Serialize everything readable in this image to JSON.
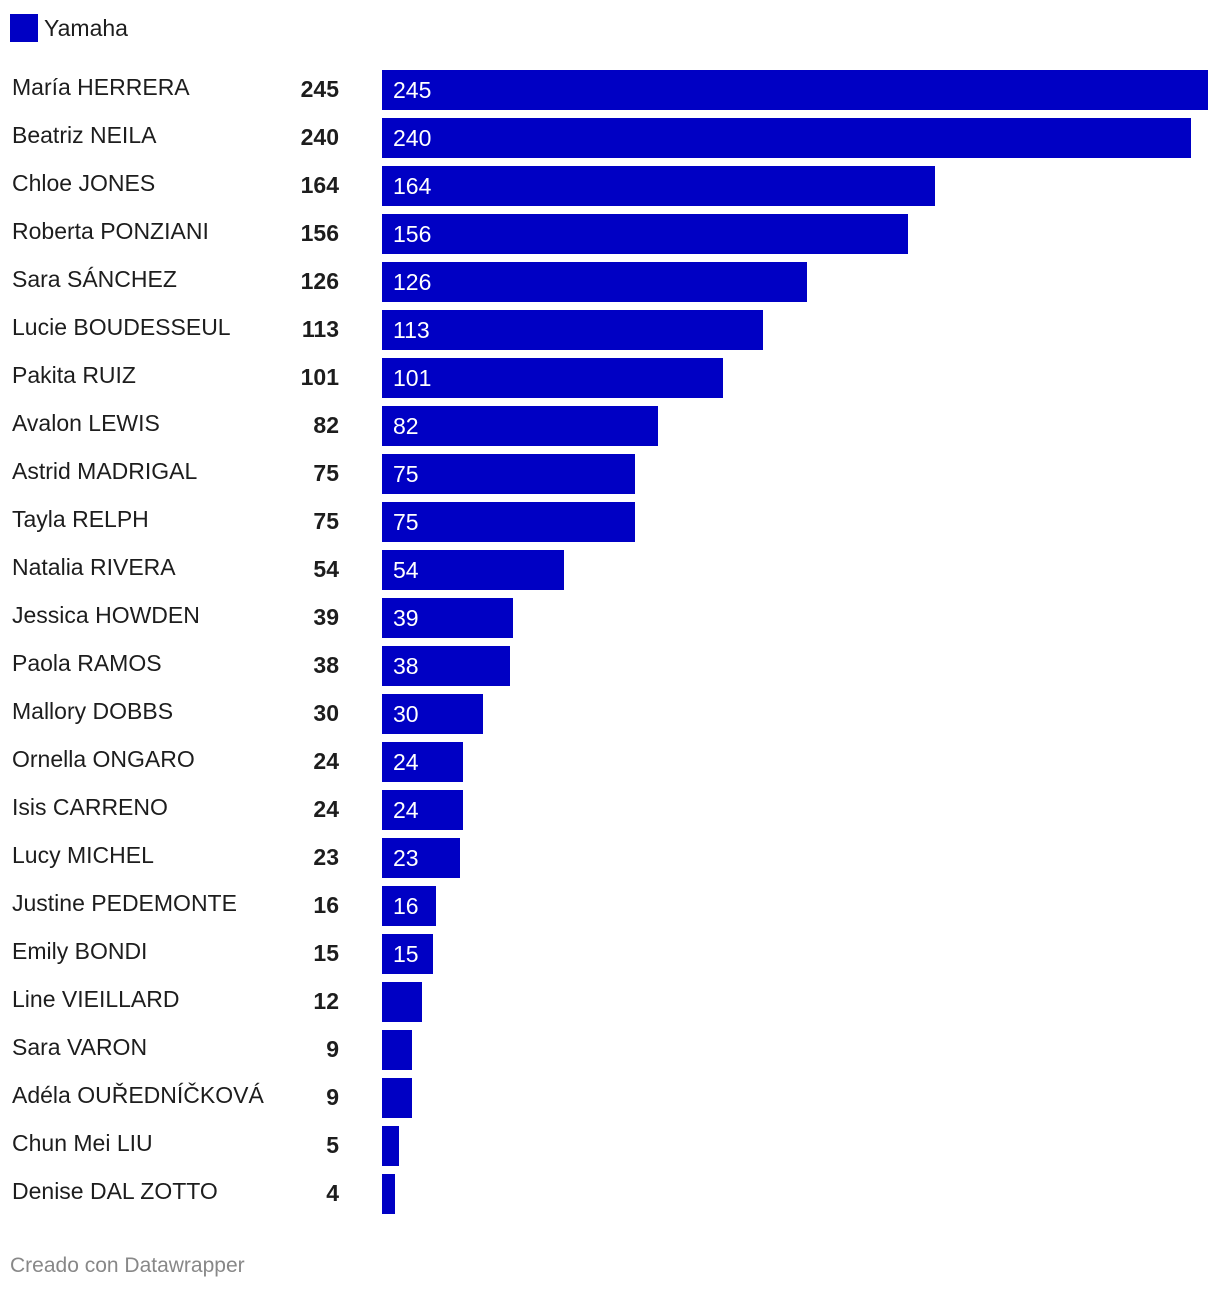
{
  "chart_data": {
    "type": "bar",
    "orientation": "horizontal",
    "legend": [
      {
        "name": "Yamaha",
        "color": "#0000c4"
      }
    ],
    "categories": [
      "María HERRERA",
      "Beatriz NEILA",
      "Chloe JONES",
      "Roberta PONZIANI",
      "Sara SÁNCHEZ",
      "Lucie BOUDESSEUL",
      "Pakita RUIZ",
      "Avalon LEWIS",
      "Astrid MADRIGAL",
      "Tayla RELPH",
      "Natalia RIVERA",
      "Jessica HOWDEN",
      "Paola RAMOS",
      "Mallory DOBBS",
      "Ornella ONGARO",
      "Isis CARRENO",
      "Lucy MICHEL",
      "Justine PEDEMONTE",
      "Emily BONDI",
      "Line VIEILLARD",
      "Sara VARON",
      "Adéla OUŘEDNÍČKOVÁ",
      "Chun Mei LIU",
      "Denise DAL ZOTTO"
    ],
    "values": [
      245,
      240,
      164,
      156,
      126,
      113,
      101,
      82,
      75,
      75,
      54,
      39,
      38,
      30,
      24,
      24,
      23,
      16,
      15,
      12,
      9,
      9,
      5,
      4
    ],
    "xlim": [
      0,
      245
    ]
  },
  "footer": "Creado con Datawrapper"
}
